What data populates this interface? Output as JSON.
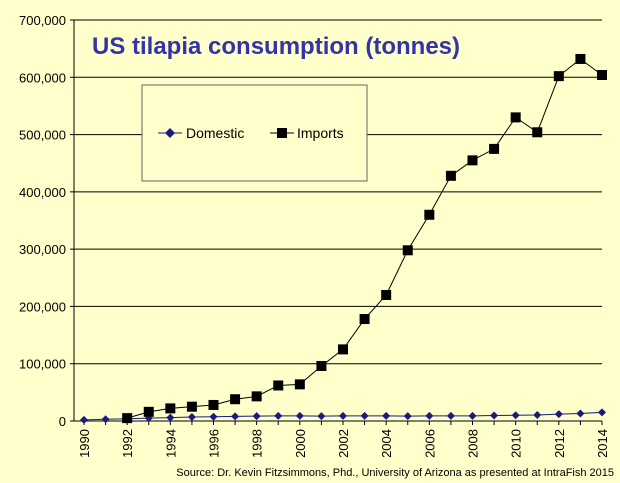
{
  "chart_data": {
    "type": "line",
    "title": "US tilapia consumption (tonnes)",
    "x": [
      1990,
      1991,
      1992,
      1993,
      1994,
      1995,
      1996,
      1997,
      1998,
      1999,
      2000,
      2001,
      2002,
      2003,
      2004,
      2005,
      2006,
      2007,
      2008,
      2009,
      2010,
      2011,
      2012,
      2013,
      2014
    ],
    "x_tick_labels": [
      "1990",
      "1992",
      "1994",
      "1996",
      "1998",
      "2000",
      "2002",
      "2004",
      "2006",
      "2008",
      "2010",
      "2012",
      "2014"
    ],
    "y_tick_labels": [
      "0",
      "100,000",
      "200,000",
      "300,000",
      "400,000",
      "500,000",
      "600,000",
      "700,000"
    ],
    "ylim": [
      0,
      700000
    ],
    "xlim": [
      1990,
      2014
    ],
    "grid": true,
    "legend_placement": "top-left",
    "series": [
      {
        "name": "Domestic",
        "marker": "diamond",
        "color": "#1a1a80",
        "values": [
          2000,
          3000,
          4000,
          5000,
          6000,
          7000,
          7500,
          8000,
          8500,
          9000,
          9000,
          8500,
          9000,
          9000,
          9000,
          8500,
          9000,
          9000,
          9000,
          9500,
          10000,
          10500,
          12000,
          13000,
          15000
        ]
      },
      {
        "name": "Imports",
        "marker": "square",
        "color": "#000000",
        "values": [
          null,
          null,
          5000,
          16000,
          22000,
          25000,
          28000,
          38000,
          43000,
          62000,
          64000,
          96000,
          125000,
          178000,
          220000,
          298000,
          360000,
          428000,
          455000,
          475000,
          530000,
          504000,
          602000,
          632000,
          604000
        ]
      }
    ],
    "annotation": "Source: Dr. Kevin Fitzsimmons, Phd., University of Arizona as presented at IntraFish 2015"
  }
}
